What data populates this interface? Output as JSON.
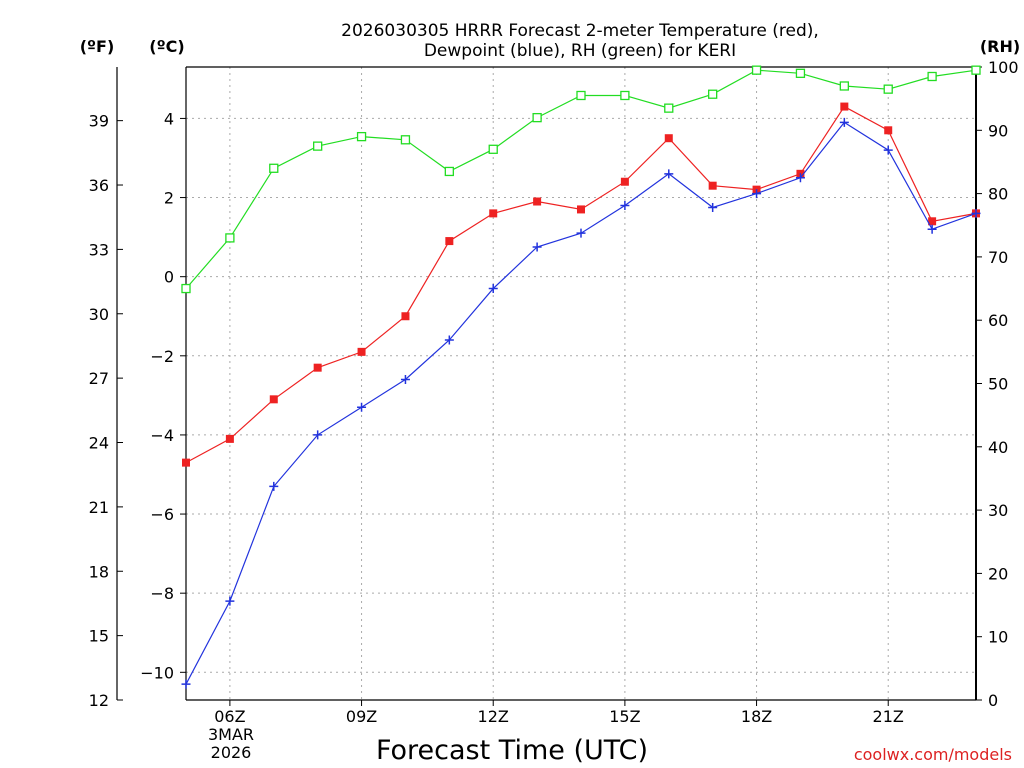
{
  "chart_data": {
    "type": "line",
    "title_lines": [
      "2026030305 HRRR Forecast 2-meter Temperature (red),",
      "Dewpoint (blue), RH (green) for KERI"
    ],
    "xlabel": "Forecast Time (UTC)",
    "credit": "coolwx.com/models",
    "x_range_hours": [
      5,
      23
    ],
    "x_ticks": [
      {
        "hour": 6,
        "label": "06Z"
      },
      {
        "hour": 9,
        "label": "09Z"
      },
      {
        "hour": 12,
        "label": "12Z"
      },
      {
        "hour": 15,
        "label": "15Z"
      },
      {
        "hour": 18,
        "label": "18Z"
      },
      {
        "hour": 21,
        "label": "21Z"
      }
    ],
    "date_lines": [
      "3MAR",
      "2026"
    ],
    "axes": {
      "celsius": {
        "unit_label": "(ºC)",
        "range": [
          -10.7,
          5.3
        ],
        "ticks": [
          4,
          2,
          0,
          -2,
          -4,
          -6,
          -8,
          -10
        ],
        "tick_labels": [
          "4",
          "2",
          "0",
          "−2",
          "−4",
          "−6",
          "−8",
          "−10"
        ]
      },
      "fahrenheit": {
        "unit_label": "(ºF)",
        "range": [
          12,
          41.5
        ],
        "ticks": [
          39,
          36,
          33,
          30,
          27,
          24,
          21,
          18,
          15,
          12
        ],
        "tick_labels": [
          "39",
          "36",
          "33",
          "30",
          "27",
          "24",
          "21",
          "18",
          "15",
          "12"
        ]
      },
      "rh": {
        "unit_label": "(RH)",
        "range": [
          0,
          100
        ],
        "ticks": [
          100,
          90,
          80,
          70,
          60,
          50,
          40,
          30,
          20,
          10,
          0
        ],
        "tick_labels": [
          "100",
          "90",
          "80",
          "70",
          "60",
          "50",
          "40",
          "30",
          "20",
          "10",
          "0"
        ]
      }
    },
    "hours": [
      5,
      6,
      7,
      8,
      9,
      10,
      11,
      12,
      13,
      14,
      15,
      16,
      17,
      18,
      19,
      20,
      21,
      22,
      23
    ],
    "series": [
      {
        "name": "Temperature",
        "unit": "C",
        "color": "#ee2222",
        "marker": "filled-square",
        "values": [
          -4.7,
          -4.1,
          -3.1,
          -2.3,
          -1.9,
          -1.0,
          0.9,
          1.6,
          1.9,
          1.7,
          2.4,
          3.5,
          2.3,
          2.2,
          2.6,
          4.3,
          3.7,
          1.4,
          1.6
        ]
      },
      {
        "name": "Dewpoint",
        "unit": "C",
        "color": "#2233dd",
        "marker": "plus",
        "values": [
          -10.3,
          -8.2,
          -5.3,
          -4.0,
          -3.3,
          -2.6,
          -1.6,
          -0.3,
          0.75,
          1.1,
          1.8,
          2.6,
          1.75,
          2.1,
          2.5,
          3.9,
          3.2,
          1.2,
          1.6
        ]
      },
      {
        "name": "RH",
        "unit": "%",
        "color": "#22dd22",
        "marker": "open-square",
        "values": [
          65,
          73,
          84,
          87.5,
          89,
          88.5,
          83.5,
          87,
          92,
          95.5,
          95.5,
          93.5,
          95.7,
          99.5,
          99,
          97,
          96.5,
          98.5,
          99.5
        ]
      }
    ]
  }
}
